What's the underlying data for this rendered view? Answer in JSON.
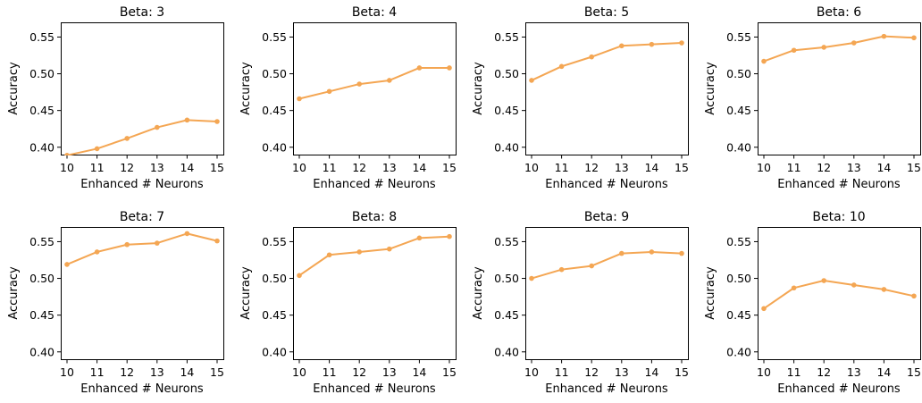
{
  "figure": {
    "line_color": "#f4a653",
    "background": "#ffffff"
  },
  "chart_data": [
    {
      "type": "line",
      "title": "Beta: 3",
      "xlabel": "Enhanced # Neurons",
      "ylabel": "Accuracy",
      "x": [
        10,
        11,
        12,
        13,
        14,
        15
      ],
      "x_tick_labels": [
        "10",
        "11",
        "12",
        "13",
        "14",
        "15"
      ],
      "y_tick_labels": [
        "0.40",
        "0.45",
        "0.50",
        "0.55"
      ],
      "y_ticks": [
        0.4,
        0.45,
        0.5,
        0.55
      ],
      "ylim": [
        0.39,
        0.57
      ],
      "series": [
        {
          "values": [
            0.389,
            0.398,
            0.412,
            0.427,
            0.437,
            0.435
          ]
        }
      ]
    },
    {
      "type": "line",
      "title": "Beta: 4",
      "xlabel": "Enhanced # Neurons",
      "ylabel": "Accuracy",
      "x": [
        10,
        11,
        12,
        13,
        14,
        15
      ],
      "x_tick_labels": [
        "10",
        "11",
        "12",
        "13",
        "14",
        "15"
      ],
      "y_tick_labels": [
        "0.40",
        "0.45",
        "0.50",
        "0.55"
      ],
      "y_ticks": [
        0.4,
        0.45,
        0.5,
        0.55
      ],
      "ylim": [
        0.39,
        0.57
      ],
      "series": [
        {
          "values": [
            0.466,
            0.476,
            0.486,
            0.491,
            0.508,
            0.508
          ]
        }
      ]
    },
    {
      "type": "line",
      "title": "Beta: 5",
      "xlabel": "Enhanced # Neurons",
      "ylabel": "Accuracy",
      "x": [
        10,
        11,
        12,
        13,
        14,
        15
      ],
      "x_tick_labels": [
        "10",
        "11",
        "12",
        "13",
        "14",
        "15"
      ],
      "y_tick_labels": [
        "0.40",
        "0.45",
        "0.50",
        "0.55"
      ],
      "y_ticks": [
        0.4,
        0.45,
        0.5,
        0.55
      ],
      "ylim": [
        0.39,
        0.57
      ],
      "series": [
        {
          "values": [
            0.491,
            0.51,
            0.523,
            0.538,
            0.54,
            0.542
          ]
        }
      ]
    },
    {
      "type": "line",
      "title": "Beta: 6",
      "xlabel": "Enhanced # Neurons",
      "ylabel": "Accuracy",
      "x": [
        10,
        11,
        12,
        13,
        14,
        15
      ],
      "x_tick_labels": [
        "10",
        "11",
        "12",
        "13",
        "14",
        "15"
      ],
      "y_tick_labels": [
        "0.40",
        "0.45",
        "0.50",
        "0.55"
      ],
      "y_ticks": [
        0.4,
        0.45,
        0.5,
        0.55
      ],
      "ylim": [
        0.39,
        0.57
      ],
      "series": [
        {
          "values": [
            0.517,
            0.532,
            0.536,
            0.542,
            0.551,
            0.549
          ]
        }
      ]
    },
    {
      "type": "line",
      "title": "Beta: 7",
      "xlabel": "Enhanced # Neurons",
      "ylabel": "Accuracy",
      "x": [
        10,
        11,
        12,
        13,
        14,
        15
      ],
      "x_tick_labels": [
        "10",
        "11",
        "12",
        "13",
        "14",
        "15"
      ],
      "y_tick_labels": [
        "0.40",
        "0.45",
        "0.50",
        "0.55"
      ],
      "y_ticks": [
        0.4,
        0.45,
        0.5,
        0.55
      ],
      "ylim": [
        0.39,
        0.57
      ],
      "series": [
        {
          "values": [
            0.519,
            0.536,
            0.546,
            0.548,
            0.561,
            0.551
          ]
        }
      ]
    },
    {
      "type": "line",
      "title": "Beta: 8",
      "xlabel": "Enhanced # Neurons",
      "ylabel": "Accuracy",
      "x": [
        10,
        11,
        12,
        13,
        14,
        15
      ],
      "x_tick_labels": [
        "10",
        "11",
        "12",
        "13",
        "14",
        "15"
      ],
      "y_tick_labels": [
        "0.40",
        "0.45",
        "0.50",
        "0.55"
      ],
      "y_ticks": [
        0.4,
        0.45,
        0.5,
        0.55
      ],
      "ylim": [
        0.39,
        0.57
      ],
      "series": [
        {
          "values": [
            0.504,
            0.532,
            0.536,
            0.54,
            0.555,
            0.557
          ]
        }
      ]
    },
    {
      "type": "line",
      "title": "Beta: 9",
      "xlabel": "Enhanced # Neurons",
      "ylabel": "Accuracy",
      "x": [
        10,
        11,
        12,
        13,
        14,
        15
      ],
      "x_tick_labels": [
        "10",
        "11",
        "12",
        "13",
        "14",
        "15"
      ],
      "y_tick_labels": [
        "0.40",
        "0.45",
        "0.50",
        "0.55"
      ],
      "y_ticks": [
        0.4,
        0.45,
        0.5,
        0.55
      ],
      "ylim": [
        0.39,
        0.57
      ],
      "series": [
        {
          "values": [
            0.5,
            0.512,
            0.517,
            0.534,
            0.536,
            0.534
          ]
        }
      ]
    },
    {
      "type": "line",
      "title": "Beta: 10",
      "xlabel": "Enhanced # Neurons",
      "ylabel": "Accuracy",
      "x": [
        10,
        11,
        12,
        13,
        14,
        15
      ],
      "x_tick_labels": [
        "10",
        "11",
        "12",
        "13",
        "14",
        "15"
      ],
      "y_tick_labels": [
        "0.40",
        "0.45",
        "0.50",
        "0.55"
      ],
      "y_ticks": [
        0.4,
        0.45,
        0.5,
        0.55
      ],
      "ylim": [
        0.39,
        0.57
      ],
      "series": [
        {
          "values": [
            0.459,
            0.487,
            0.497,
            0.491,
            0.485,
            0.476
          ]
        }
      ]
    }
  ]
}
